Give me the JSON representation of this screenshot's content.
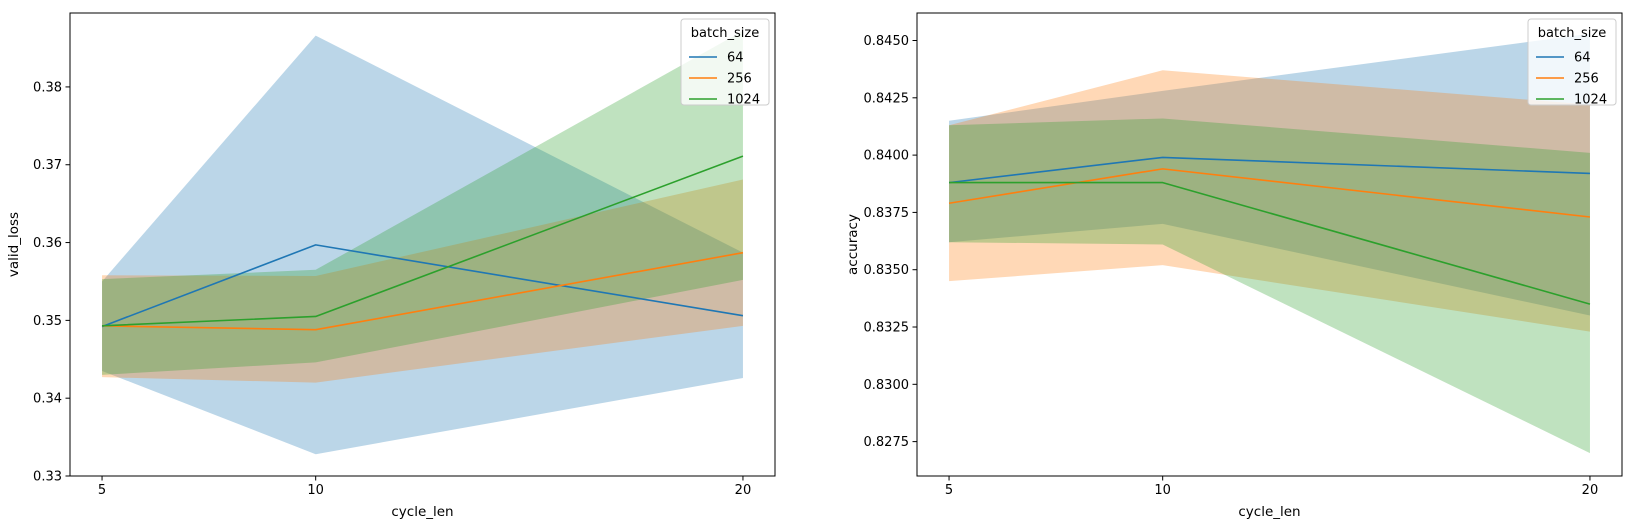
{
  "chart_data": [
    {
      "type": "line",
      "xlabel": "cycle_len",
      "ylabel": "valid_loss",
      "x": [
        5,
        10,
        20
      ],
      "xticks": [
        5,
        10,
        20
      ],
      "xlim": [
        4.25,
        20.75
      ],
      "ylim": [
        0.33,
        0.3895
      ],
      "yticks": [
        0.33,
        0.34,
        0.35,
        0.36,
        0.37,
        0.38
      ],
      "ytick_labels": [
        "0.33",
        "0.34",
        "0.35",
        "0.36",
        "0.37",
        "0.38"
      ],
      "legend": {
        "title": "batch_size",
        "location": "top-right"
      },
      "series": [
        {
          "name": "64",
          "color": "#1f77b4",
          "values": [
            0.3492,
            0.3597,
            0.3506
          ],
          "ci_low": [
            0.3435,
            0.3328,
            0.3426
          ],
          "ci_high": [
            0.355,
            0.3866,
            0.3587
          ]
        },
        {
          "name": "256",
          "color": "#ff7f0e",
          "values": [
            0.3493,
            0.3488,
            0.3587
          ],
          "ci_low": [
            0.3427,
            0.342,
            0.3493
          ],
          "ci_high": [
            0.3558,
            0.3557,
            0.3681
          ]
        },
        {
          "name": "1024",
          "color": "#2ca02c",
          "values": [
            0.3493,
            0.3505,
            0.3711
          ],
          "ci_low": [
            0.343,
            0.3446,
            0.3552
          ],
          "ci_high": [
            0.3553,
            0.3565,
            0.3872
          ]
        }
      ]
    },
    {
      "type": "line",
      "xlabel": "cycle_len",
      "ylabel": "accuracy",
      "x": [
        5,
        10,
        20
      ],
      "xticks": [
        5,
        10,
        20
      ],
      "xlim": [
        4.25,
        20.75
      ],
      "ylim": [
        0.826,
        0.8462
      ],
      "yticks": [
        0.8275,
        0.83,
        0.8325,
        0.835,
        0.8375,
        0.84,
        0.8425,
        0.845
      ],
      "ytick_labels": [
        "0.8275",
        "0.8300",
        "0.8325",
        "0.8350",
        "0.8375",
        "0.8400",
        "0.8425",
        "0.8450"
      ],
      "legend": {
        "title": "batch_size",
        "location": "top-right"
      },
      "series": [
        {
          "name": "64",
          "color": "#1f77b4",
          "values": [
            0.8388,
            0.8399,
            0.8392
          ],
          "ci_low": [
            0.8362,
            0.837,
            0.833
          ],
          "ci_high": [
            0.8415,
            0.8428,
            0.8453
          ]
        },
        {
          "name": "256",
          "color": "#ff7f0e",
          "values": [
            0.8379,
            0.8394,
            0.8373
          ],
          "ci_low": [
            0.8345,
            0.8352,
            0.8323
          ],
          "ci_high": [
            0.8413,
            0.8437,
            0.8422
          ]
        },
        {
          "name": "1024",
          "color": "#2ca02c",
          "values": [
            0.8388,
            0.8388,
            0.8335
          ],
          "ci_low": [
            0.8362,
            0.8361,
            0.827
          ],
          "ci_high": [
            0.8413,
            0.8416,
            0.8401
          ]
        }
      ]
    }
  ]
}
